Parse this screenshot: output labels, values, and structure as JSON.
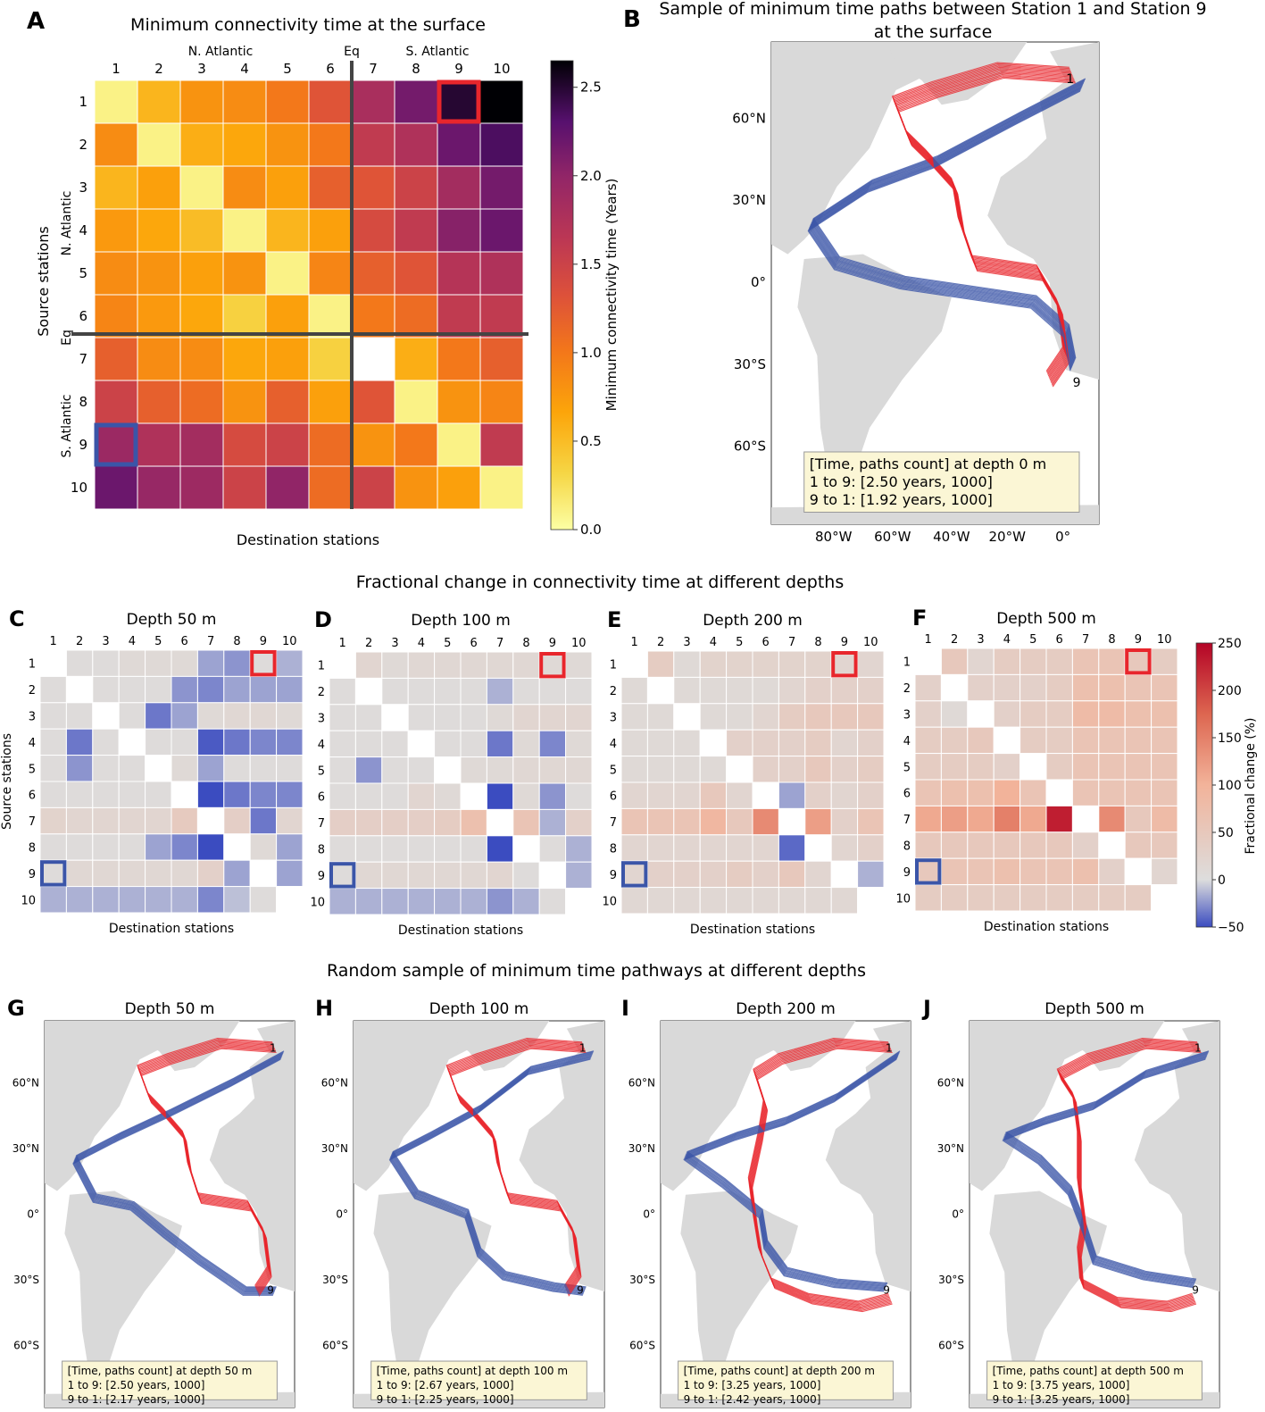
{
  "colors": {
    "accent_red": "#e8262c",
    "accent_blue": "#3b55a8",
    "land": "#d9d9d9",
    "ocean": "#ffffff",
    "legend_box": "#fbf6d5"
  },
  "chart_data": [
    {
      "type": "heatmap",
      "panel_letter": "A",
      "title": "Minimum connectivity time at the surface",
      "xlabel": "Destination stations",
      "ylabel": "Source stations",
      "x_categories": [
        "1",
        "2",
        "3",
        "4",
        "5",
        "6",
        "7",
        "8",
        "9",
        "10"
      ],
      "y_categories": [
        "1",
        "2",
        "3",
        "4",
        "5",
        "6",
        "7",
        "8",
        "9",
        "10"
      ],
      "top_group_labels": [
        {
          "text": "N. Atlantic",
          "span": [
            1,
            6
          ]
        },
        {
          "text": "Eq",
          "span": [
            6.5,
            6.5
          ]
        },
        {
          "text": "S. Atlantic",
          "span": [
            7,
            10
          ]
        }
      ],
      "left_group_labels": [
        {
          "text": "N. Atlantic",
          "span": [
            1,
            6
          ]
        },
        {
          "text": "Eq",
          "span": [
            6.5,
            6.5
          ]
        },
        {
          "text": "S. Atlantic",
          "span": [
            7,
            10
          ]
        }
      ],
      "colormap": "inferno_r",
      "colorbar": {
        "label": "Minimum connectivity time (Years)",
        "min": 0.0,
        "max": 2.65,
        "ticks": [
          0.0,
          0.5,
          1.0,
          1.5,
          2.0,
          2.5
        ],
        "tick_labels": [
          "0.0",
          "0.5",
          "1.0",
          "1.5",
          "2.0",
          "2.5"
        ]
      },
      "values": [
        [
          0.1,
          0.55,
          0.8,
          0.85,
          1.0,
          1.3,
          1.8,
          2.15,
          2.5,
          2.65
        ],
        [
          0.85,
          0.1,
          0.6,
          0.65,
          0.8,
          1.0,
          1.6,
          1.75,
          2.2,
          2.35
        ],
        [
          0.55,
          0.7,
          0.1,
          0.85,
          0.7,
          1.2,
          1.3,
          1.5,
          1.85,
          2.15
        ],
        [
          0.75,
          0.65,
          0.5,
          0.1,
          0.55,
          0.7,
          1.4,
          1.6,
          2.05,
          2.2
        ],
        [
          0.85,
          0.8,
          0.7,
          0.8,
          0.1,
          0.9,
          1.2,
          1.3,
          1.7,
          1.75
        ],
        [
          0.9,
          0.75,
          0.65,
          0.35,
          0.7,
          0.1,
          1.0,
          1.1,
          1.6,
          1.6
        ],
        [
          1.2,
          0.85,
          0.85,
          0.65,
          0.7,
          0.35,
          null,
          0.6,
          1.0,
          1.2
        ],
        [
          1.5,
          1.2,
          1.1,
          0.8,
          1.2,
          0.7,
          1.3,
          0.1,
          0.8,
          0.9
        ],
        [
          1.92,
          1.75,
          1.85,
          1.4,
          1.5,
          1.1,
          0.8,
          1.0,
          0.1,
          1.6
        ],
        [
          2.2,
          1.95,
          1.9,
          1.5,
          2.0,
          1.1,
          1.5,
          0.8,
          0.7,
          0.1
        ]
      ],
      "highlight_cells": [
        {
          "row": 1,
          "col": 9,
          "color": "red"
        },
        {
          "row": 9,
          "col": 1,
          "color": "blue"
        }
      ],
      "divider_after_index": 6
    },
    {
      "type": "map",
      "panel_letter": "B",
      "title": "Sample of minimum time paths between Station 1 and Station 9",
      "title_line2": "at the surface",
      "lat_ticks": [
        "60°N",
        "30°N",
        "0°",
        "30°S",
        "60°S"
      ],
      "lon_ticks": [
        "80°W",
        "60°W",
        "40°W",
        "20°W",
        "0°"
      ],
      "station_labels": [
        "1",
        "9"
      ],
      "legend_lines": [
        "[Time, paths count] at depth 0 m",
        "1 to 9: [2.50 years, 1000]",
        "9 to 1: [1.92 years, 1000]"
      ],
      "series": [
        {
          "name": "1 to 9",
          "color": "blue",
          "time_years": 2.5,
          "paths": 1000
        },
        {
          "name": "9 to 1",
          "color": "red",
          "time_years": 1.92,
          "paths": 1000
        }
      ]
    },
    {
      "type": "heatmap",
      "section_title": "Fractional change in connectivity time at different depths",
      "panels": [
        {
          "panel_letter": "C",
          "title": "Depth 50 m",
          "xlabel": "Destination stations",
          "ylabel": "Source stations",
          "values": [
            [
              null,
              5,
              5,
              10,
              10,
              10,
              -20,
              -25,
              5,
              -15
            ],
            [
              5,
              null,
              5,
              5,
              5,
              -25,
              -30,
              -20,
              -20,
              -20
            ],
            [
              5,
              5,
              null,
              5,
              -35,
              -20,
              10,
              15,
              15,
              10
            ],
            [
              5,
              -35,
              5,
              null,
              5,
              5,
              -45,
              -35,
              -30,
              -30
            ],
            [
              5,
              -25,
              5,
              5,
              null,
              10,
              -20,
              5,
              5,
              5
            ],
            [
              5,
              5,
              5,
              5,
              5,
              null,
              -80,
              -35,
              -30,
              -30
            ],
            [
              25,
              20,
              20,
              20,
              20,
              45,
              null,
              35,
              -35,
              20
            ],
            [
              5,
              5,
              5,
              5,
              -20,
              -30,
              -80,
              null,
              10,
              -20
            ],
            [
              5,
              15,
              15,
              15,
              15,
              15,
              30,
              -20,
              null,
              -20
            ],
            [
              -15,
              -15,
              -15,
              -15,
              -15,
              -15,
              -30,
              -10,
              5,
              null
            ]
          ]
        },
        {
          "panel_letter": "D",
          "title": "Depth 100 m",
          "xlabel": "Destination stations",
          "ylabel": "",
          "values": [
            [
              null,
              20,
              10,
              15,
              15,
              15,
              15,
              15,
              10,
              10
            ],
            [
              5,
              null,
              5,
              5,
              5,
              5,
              -15,
              5,
              5,
              5
            ],
            [
              5,
              5,
              null,
              5,
              5,
              5,
              10,
              20,
              20,
              20
            ],
            [
              5,
              5,
              5,
              null,
              5,
              5,
              -35,
              10,
              -30,
              10
            ],
            [
              5,
              -25,
              5,
              5,
              null,
              10,
              10,
              15,
              15,
              15
            ],
            [
              5,
              5,
              5,
              20,
              10,
              null,
              -80,
              10,
              -25,
              5
            ],
            [
              35,
              35,
              35,
              35,
              40,
              70,
              null,
              60,
              -15,
              30
            ],
            [
              5,
              5,
              5,
              5,
              5,
              5,
              -75,
              null,
              5,
              -15
            ],
            [
              5,
              15,
              15,
              15,
              15,
              15,
              20,
              5,
              null,
              -15
            ],
            [
              -15,
              -15,
              -15,
              -15,
              -15,
              -15,
              -25,
              -15,
              5,
              null
            ]
          ]
        },
        {
          "panel_letter": "E",
          "title": "Depth 200 m",
          "xlabel": "Destination stations",
          "ylabel": "",
          "values": [
            [
              null,
              40,
              10,
              25,
              25,
              25,
              25,
              25,
              20,
              20
            ],
            [
              10,
              null,
              10,
              10,
              10,
              10,
              20,
              30,
              30,
              30
            ],
            [
              10,
              10,
              null,
              10,
              10,
              20,
              40,
              50,
              50,
              50
            ],
            [
              10,
              10,
              10,
              null,
              30,
              30,
              30,
              40,
              20,
              30
            ],
            [
              10,
              10,
              10,
              10,
              null,
              30,
              30,
              50,
              30,
              40
            ],
            [
              20,
              20,
              20,
              50,
              20,
              null,
              -20,
              30,
              20,
              30
            ],
            [
              60,
              60,
              60,
              90,
              50,
              140,
              null,
              120,
              30,
              60
            ],
            [
              20,
              20,
              20,
              20,
              20,
              20,
              -40,
              null,
              20,
              30
            ],
            [
              20,
              30,
              30,
              30,
              40,
              30,
              50,
              20,
              null,
              -15
            ],
            [
              15,
              15,
              15,
              15,
              15,
              15,
              15,
              15,
              15,
              null
            ]
          ]
        },
        {
          "panel_letter": "F",
          "title": "Depth 500 m",
          "xlabel": "Destination stations",
          "ylabel": "",
          "values": [
            [
              null,
              50,
              20,
              40,
              40,
              40,
              60,
              60,
              50,
              40
            ],
            [
              30,
              null,
              30,
              30,
              30,
              40,
              70,
              70,
              60,
              60
            ],
            [
              30,
              10,
              null,
              30,
              40,
              40,
              80,
              80,
              70,
              70
            ],
            [
              40,
              40,
              50,
              null,
              40,
              40,
              60,
              60,
              60,
              60
            ],
            [
              40,
              40,
              40,
              30,
              null,
              40,
              60,
              60,
              60,
              60
            ],
            [
              60,
              70,
              70,
              100,
              60,
              null,
              60,
              60,
              60,
              60
            ],
            [
              110,
              120,
              110,
              150,
              110,
              230,
              null,
              140,
              50,
              80
            ],
            [
              50,
              50,
              50,
              50,
              50,
              50,
              30,
              null,
              50,
              50
            ],
            [
              50,
              60,
              60,
              70,
              60,
              60,
              70,
              30,
              null,
              20
            ],
            [
              40,
              40,
              40,
              40,
              40,
              40,
              40,
              40,
              40,
              null
            ]
          ]
        }
      ],
      "x_categories": [
        "1",
        "2",
        "3",
        "4",
        "5",
        "6",
        "7",
        "8",
        "9",
        "10"
      ],
      "y_categories": [
        "1",
        "2",
        "3",
        "4",
        "5",
        "6",
        "7",
        "8",
        "9",
        "10"
      ],
      "colormap": "coolwarm",
      "colorbar": {
        "label": "Fractional change (%)",
        "min": -50,
        "max": 250,
        "ticks": [
          -50,
          0,
          50,
          100,
          150,
          200,
          250
        ],
        "tick_labels": [
          "−50",
          "0",
          "50",
          "100",
          "150",
          "200",
          "250"
        ]
      },
      "highlight_cells": [
        {
          "row": 1,
          "col": 9,
          "color": "red"
        },
        {
          "row": 9,
          "col": 1,
          "color": "blue"
        }
      ]
    },
    {
      "type": "map",
      "section_title": "Random sample of minimum time pathways at different depths",
      "lat_ticks": [
        "60°N",
        "30°N",
        "0°",
        "30°S",
        "60°S"
      ],
      "lon_ticks": [
        "80°W",
        "60°W",
        "40°W",
        "20°W",
        "0°"
      ],
      "station_labels": [
        "1",
        "9"
      ],
      "panels": [
        {
          "panel_letter": "G",
          "title": "Depth 50 m",
          "legend_lines": [
            "[Time, paths count] at depth 50 m",
            "1 to 9: [2.50 years, 1000]",
            "9 to 1: [2.17 years, 1000]"
          ]
        },
        {
          "panel_letter": "H",
          "title": "Depth 100 m",
          "legend_lines": [
            "[Time, paths count] at depth 100 m",
            "1 to 9: [2.67 years, 1000]",
            "9 to 1: [2.25 years, 1000]"
          ]
        },
        {
          "panel_letter": "I",
          "title": "Depth 200 m",
          "legend_lines": [
            "[Time, paths count] at depth 200 m",
            "1 to 9: [3.25 years, 1000]",
            "9 to 1: [2.42 years, 1000]"
          ]
        },
        {
          "panel_letter": "J",
          "title": "Depth 500 m",
          "legend_lines": [
            "[Time, paths count] at depth 500 m",
            "1 to 9: [3.75 years, 1000]",
            "9 to 1: [3.25 years, 1000]"
          ]
        }
      ]
    }
  ]
}
